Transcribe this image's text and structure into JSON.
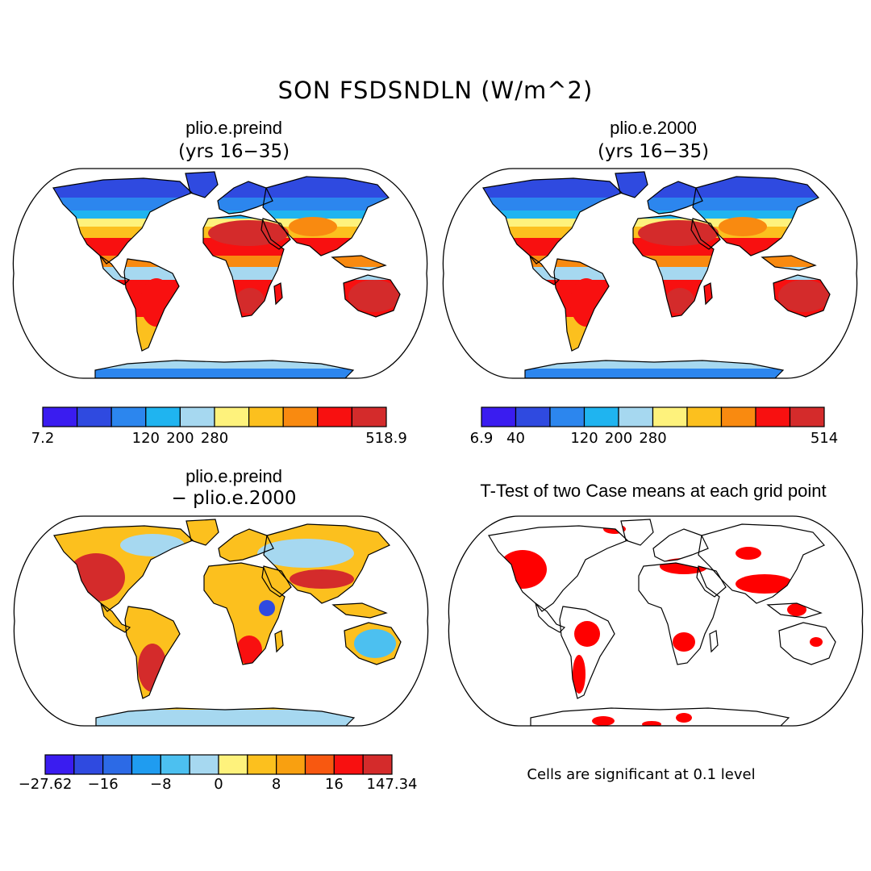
{
  "title": "SON FSDSNDLN (W/m^2)",
  "panels": [
    {
      "title": "plio.e.preind",
      "subtitle": "(yrs 16−35)",
      "kind": "mean"
    },
    {
      "title": "plio.e.2000",
      "subtitle": "(yrs 16−35)",
      "kind": "mean"
    },
    {
      "title": "plio.e.preind",
      "subtitle": "− plio.e.2000",
      "kind": "diff"
    },
    {
      "title": "T-Test of two Case means at each grid point",
      "subtitle": "",
      "kind": "ttest"
    }
  ],
  "colorbars": {
    "preind": {
      "colors": [
        "#3a1cf0",
        "#2f4ae0",
        "#2c86ee",
        "#1fb4f0",
        "#a6d8f0",
        "#fef27c",
        "#fcc01e",
        "#f98a10",
        "#f81010",
        "#d42b2b"
      ],
      "tick_labels": [
        "7.2",
        "120",
        "200",
        "280",
        "518.9"
      ],
      "tick_positions": [
        0,
        3,
        4,
        5,
        10
      ]
    },
    "y2000": {
      "colors": [
        "#3a1cf0",
        "#2f4ae0",
        "#2c86ee",
        "#1fb4f0",
        "#a6d8f0",
        "#fef27c",
        "#fcc01e",
        "#f98a10",
        "#f81010",
        "#d42b2b"
      ],
      "tick_labels": [
        "6.9",
        "40",
        "120",
        "200",
        "280",
        "514"
      ],
      "tick_positions": [
        0,
        1,
        3,
        4,
        5,
        10
      ]
    },
    "diff": {
      "colors": [
        "#3a1cf0",
        "#2f4ae0",
        "#2c6ae6",
        "#1f9cf0",
        "#4cc0f0",
        "#a6d8f0",
        "#fef27c",
        "#fcc01e",
        "#f9a010",
        "#f85810",
        "#f81010",
        "#d42b2b"
      ],
      "tick_labels": [
        "−27.62",
        "−16",
        "−8",
        "0",
        "8",
        "16",
        "147.34"
      ],
      "tick_positions": [
        0,
        2,
        4,
        6,
        8,
        10,
        12
      ]
    }
  },
  "significance_note": "Cells are significant at 0.1 level",
  "significance_color": "#ff0000",
  "map_projection": "Robinson (global)"
}
